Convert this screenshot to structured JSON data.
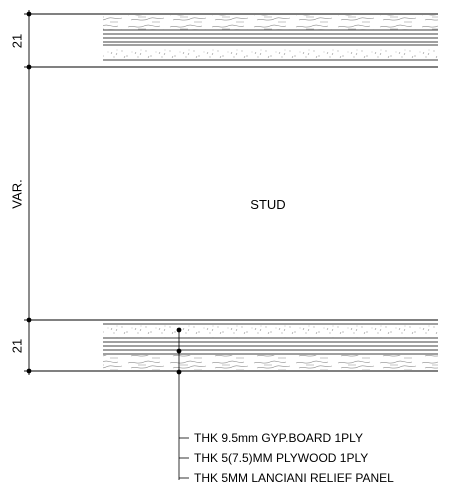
{
  "dimensions": {
    "top": "21",
    "middle": "VAR.",
    "bottom": "21"
  },
  "core_label": "STUD",
  "callouts": [
    "THK 9.5mm GYP.BOARD 1PLY",
    "THK 5(7.5)MM PLYWOOD 1PLY",
    "THK 5MM LANCIANI RELIEF PANEL"
  ],
  "colors": {
    "line": "#000000",
    "hatch": "#8c8c8c",
    "background": "#ffffff"
  }
}
